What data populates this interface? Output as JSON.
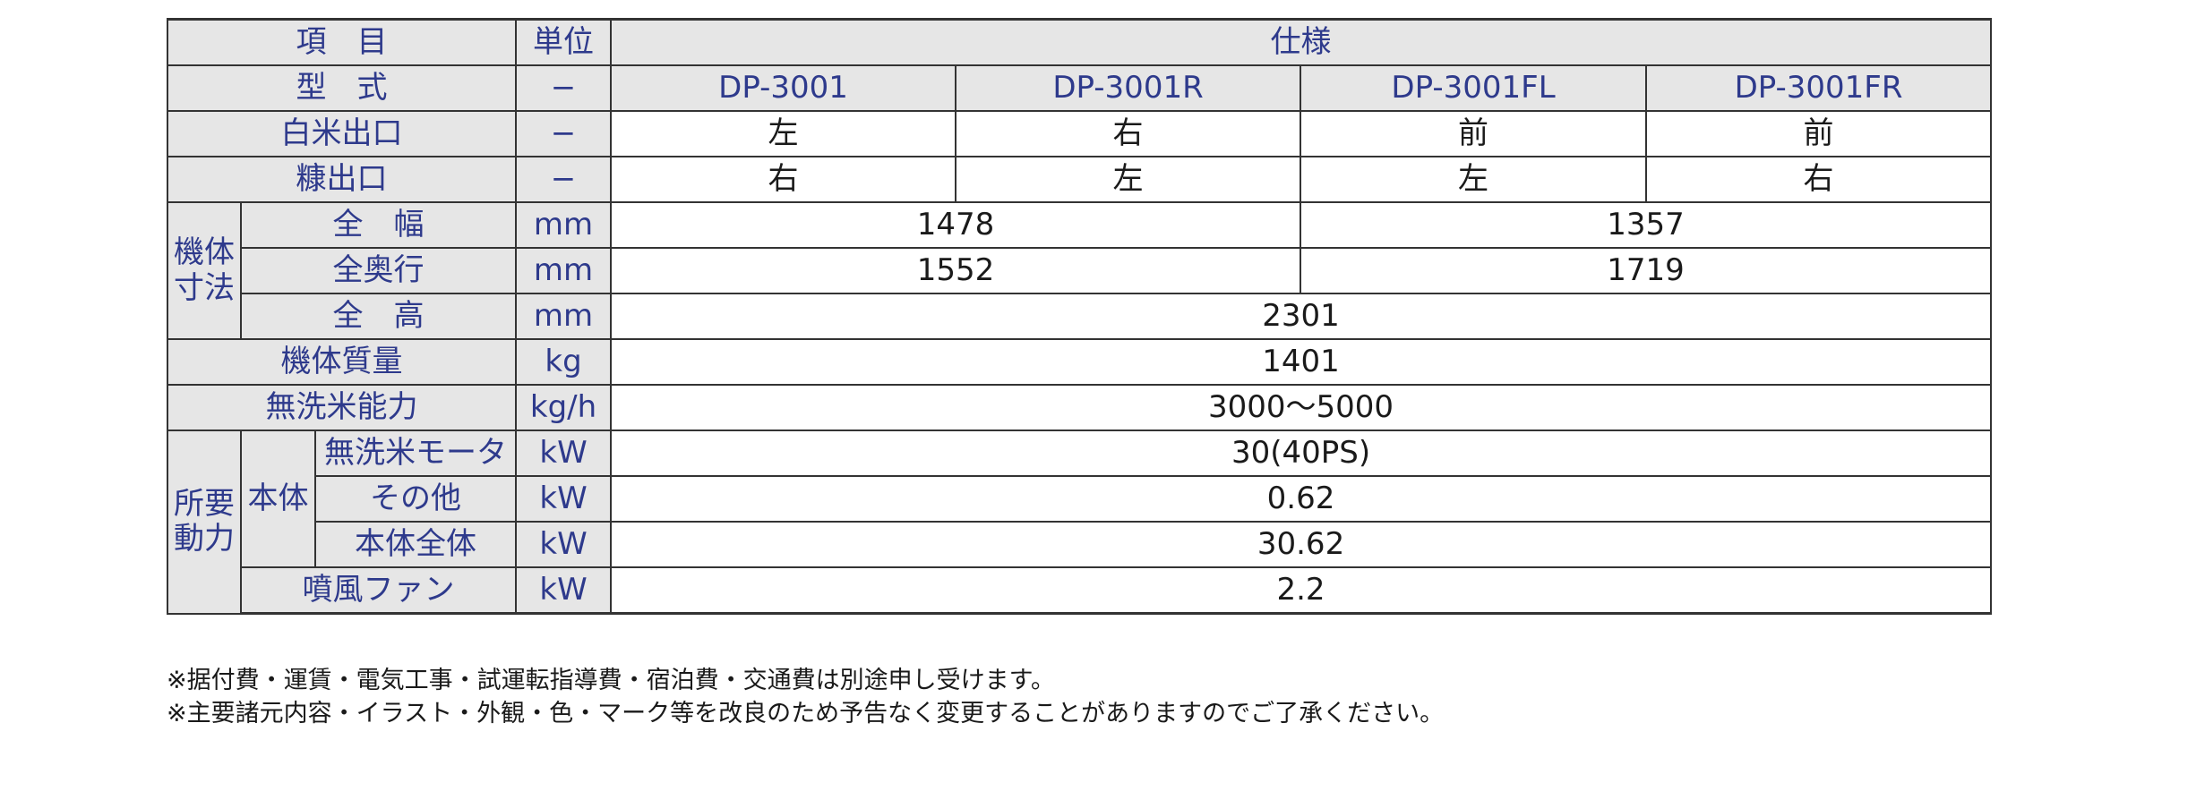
{
  "table": {
    "header": {
      "item": "項　目",
      "unit": "単位",
      "spec": "仕様"
    },
    "rows": {
      "model": {
        "label": "型　式",
        "unit": "−",
        "values": [
          "DP-3001",
          "DP-3001R",
          "DP-3001FL",
          "DP-3001FR"
        ]
      },
      "rice_outlet": {
        "label": "白米出口",
        "unit": "−",
        "values": [
          "左",
          "右",
          "前",
          "前"
        ]
      },
      "bran_outlet": {
        "label": "糠出口",
        "unit": "−",
        "values": [
          "右",
          "左",
          "左",
          "右"
        ]
      },
      "dimensions_group": "機体寸法",
      "width": {
        "label": "全　幅",
        "unit": "mm",
        "values": [
          "1478",
          "1357"
        ]
      },
      "depth": {
        "label": "全奥行",
        "unit": "mm",
        "values": [
          "1552",
          "1719"
        ]
      },
      "height": {
        "label": "全　高",
        "unit": "mm",
        "value": "2301"
      },
      "mass": {
        "label": "機体質量",
        "unit": "kg",
        "value": "1401"
      },
      "capacity": {
        "label": "無洗米能力",
        "unit": "kg/h",
        "value": "3000〜5000"
      },
      "power_group": "所要動力",
      "body_group": "本体",
      "motor": {
        "label": "無洗米モータ",
        "unit": "kW",
        "value": "30(40PS)"
      },
      "other": {
        "label": "その他",
        "unit": "kW",
        "value": "0.62"
      },
      "body_total": {
        "label": "本体全体",
        "unit": "kW",
        "value": "30.62"
      },
      "fan": {
        "label": "噴風ファン",
        "unit": "kW",
        "value": "2.2"
      }
    }
  },
  "notes": [
    "※据付費・運賃・電気工事・試運転指導費・宿泊費・交通費は別途申し受けます。",
    "※主要諸元内容・イラスト・外観・色・マーク等を改良のため予告なく変更することがありますのでご了承ください。"
  ],
  "colors": {
    "header_text": "#2e3a8c",
    "header_background": "#e6e6e6",
    "value_text": "#1a1a1a",
    "border": "#333333"
  }
}
